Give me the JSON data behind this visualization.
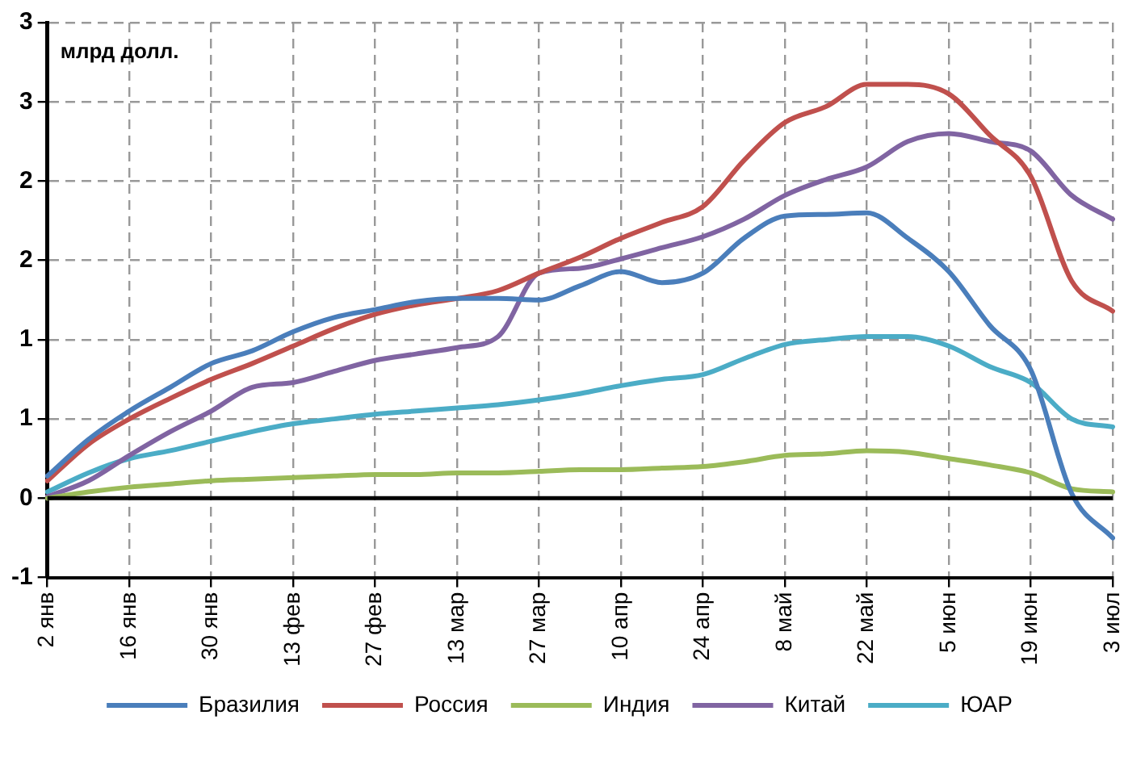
{
  "chart_data": {
    "type": "line",
    "ylabel": "млрд долл.",
    "categories": [
      "2 янв",
      null,
      "16 янв",
      null,
      "30 янв",
      null,
      "13 фев",
      null,
      "27 фев",
      null,
      "13 мар",
      null,
      "27 мар",
      null,
      "10 апр",
      null,
      "24 апр",
      null,
      "8 май",
      null,
      "22 май",
      null,
      "5 июн",
      null,
      "19 июн",
      null,
      "3 июл"
    ],
    "series": [
      {
        "name": "Бразилия",
        "color": "#4a7ebb",
        "values": [
          0.14,
          0.37,
          0.55,
          0.7,
          0.85,
          0.93,
          1.05,
          1.14,
          1.19,
          1.24,
          1.26,
          1.26,
          1.25,
          1.34,
          1.43,
          1.36,
          1.42,
          1.64,
          1.78,
          1.79,
          1.8,
          1.64,
          1.43,
          1.09,
          0.81,
          0.03,
          -0.25
        ]
      },
      {
        "name": "Россия",
        "color": "#c0504d",
        "values": [
          0.11,
          0.34,
          0.5,
          0.63,
          0.75,
          0.85,
          0.96,
          1.07,
          1.16,
          1.22,
          1.26,
          1.31,
          1.42,
          1.52,
          1.64,
          1.74,
          1.84,
          2.13,
          2.37,
          2.47,
          2.61,
          2.61,
          2.55,
          2.29,
          2.03,
          1.37,
          1.18
        ]
      },
      {
        "name": "Индия",
        "color": "#9bbb59",
        "values": [
          0.0,
          0.04,
          0.07,
          0.09,
          0.11,
          0.12,
          0.13,
          0.14,
          0.15,
          0.15,
          0.16,
          0.16,
          0.17,
          0.18,
          0.18,
          0.19,
          0.2,
          0.23,
          0.27,
          0.28,
          0.3,
          0.29,
          0.25,
          0.21,
          0.16,
          0.06,
          0.04
        ]
      },
      {
        "name": "Китай",
        "color": "#8064a2",
        "values": [
          0.01,
          0.11,
          0.27,
          0.42,
          0.55,
          0.7,
          0.73,
          0.8,
          0.87,
          0.91,
          0.95,
          1.02,
          1.42,
          1.45,
          1.51,
          1.58,
          1.65,
          1.76,
          1.91,
          2.01,
          2.09,
          2.25,
          2.3,
          2.25,
          2.19,
          1.91,
          1.76
        ]
      },
      {
        "name": "ЮАР",
        "color": "#4bacc6",
        "values": [
          0.04,
          0.16,
          0.25,
          0.3,
          0.36,
          0.42,
          0.47,
          0.5,
          0.53,
          0.55,
          0.57,
          0.59,
          0.62,
          0.66,
          0.71,
          0.75,
          0.78,
          0.88,
          0.97,
          1.0,
          1.02,
          1.02,
          0.96,
          0.83,
          0.73,
          0.5,
          0.45
        ]
      }
    ],
    "ylim": [
      -0.5,
      3
    ],
    "yticks": [
      {
        "value": -0.5,
        "label": "-1"
      },
      0,
      {
        "value": 0.5,
        "label": "1"
      },
      {
        "value": 1,
        "label": "1"
      },
      {
        "value": 1.5,
        "label": "2"
      },
      {
        "value": 2,
        "label": "2"
      },
      {
        "value": 2.5,
        "label": "3"
      },
      {
        "value": 3,
        "label": "3"
      }
    ],
    "grid": true,
    "legend": "bottom",
    "marker": "none",
    "line_style": "solid"
  }
}
